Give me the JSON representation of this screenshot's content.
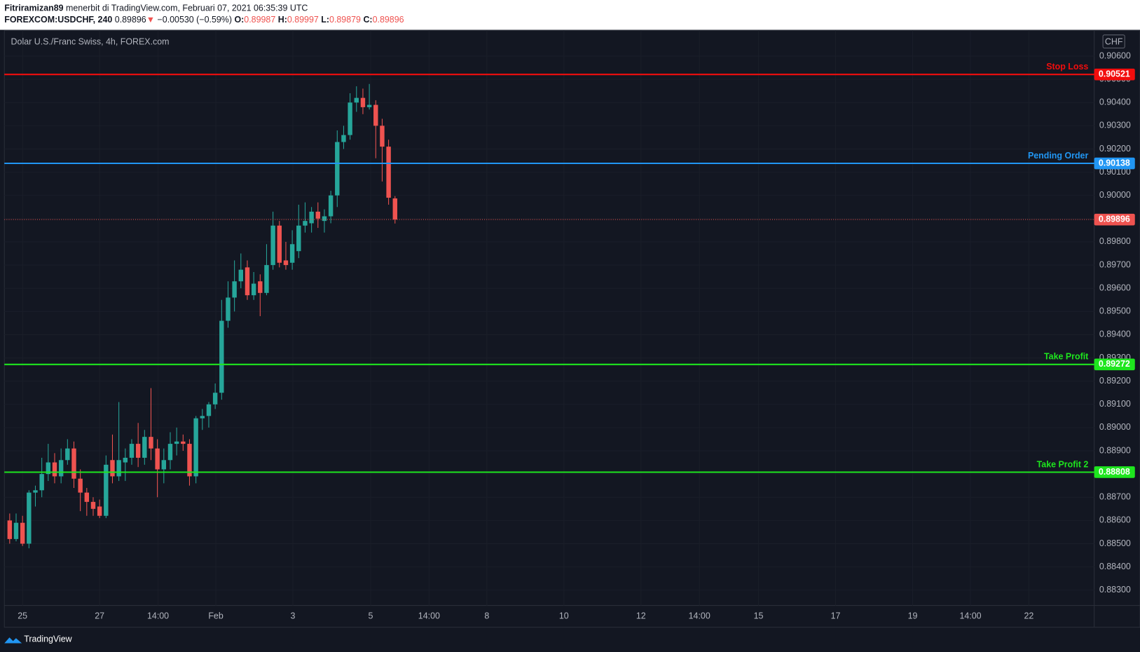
{
  "header": {
    "publisher": "Fitriramizan89",
    "published": "menerbit di TradingView.com, Februari 07, 2021 06:35:39 UTC",
    "symbol": "FOREXCOM:USDCHF, 240",
    "change": "−0.00530 (−0.59%)",
    "ohlc_labels": [
      "O:",
      "H:",
      "L:",
      "C:"
    ]
  },
  "footer": {
    "brand": "TradingView"
  },
  "chart_data": {
    "type": "candlestick",
    "title": "Dolar U.S./Franc Swiss, 4h, FOREX.com",
    "currency": "CHF",
    "up_color": "#26a69a",
    "down_color": "#ef5350",
    "x": [
      -2,
      -1,
      0,
      1,
      2,
      3,
      4,
      5,
      6,
      7,
      8,
      9,
      10,
      11,
      12,
      13,
      14,
      15,
      16,
      17,
      18,
      19,
      20,
      21,
      22,
      23,
      24,
      25,
      26,
      27,
      28,
      29,
      30,
      31,
      32,
      33,
      34,
      35,
      36,
      37,
      38,
      39,
      40,
      41,
      42,
      43,
      44,
      45,
      46,
      47,
      48,
      49,
      50,
      51,
      52,
      53,
      54,
      55,
      56,
      57,
      58
    ],
    "open": [
      0.886,
      0.8852,
      0.8859,
      0.885,
      0.8872,
      0.8873,
      0.888,
      0.8885,
      0.8879,
      0.8886,
      0.8891,
      0.8878,
      0.8872,
      0.8868,
      0.8866,
      0.8862,
      0.8886,
      0.8879,
      0.8885,
      0.8887,
      0.8893,
      0.8887,
      0.8896,
      0.8891,
      0.8882,
      0.8886,
      0.8893,
      0.8894,
      0.8893,
      0.8879,
      0.8904,
      0.8905,
      0.891,
      0.8915,
      0.8946,
      0.8956,
      0.8963,
      0.8969,
      0.8957,
      0.8963,
      0.8958,
      0.897,
      0.8987,
      0.8972,
      0.8971,
      0.8976,
      0.8987,
      0.8988,
      0.8993,
      0.8989,
      0.8991,
      0.9,
      0.9023,
      0.9026,
      0.904,
      0.9042,
      0.9038,
      0.9039,
      0.903,
      0.9021,
      0.89987
    ],
    "high": [
      0.8863,
      0.8863,
      0.8862,
      0.8873,
      0.8875,
      0.8887,
      0.8893,
      0.8889,
      0.8891,
      0.8895,
      0.8894,
      0.8882,
      0.8874,
      0.887,
      0.8869,
      0.8888,
      0.8897,
      0.8911,
      0.8891,
      0.8895,
      0.8902,
      0.8899,
      0.8917,
      0.8895,
      0.8891,
      0.8898,
      0.89,
      0.8897,
      0.8895,
      0.8905,
      0.8908,
      0.8911,
      0.8919,
      0.8955,
      0.8963,
      0.8972,
      0.8975,
      0.8972,
      0.8967,
      0.8966,
      0.8979,
      0.8993,
      0.8989,
      0.898,
      0.8985,
      0.8996,
      0.8997,
      0.8995,
      0.8997,
      0.8994,
      0.9002,
      0.9028,
      0.903,
      0.9044,
      0.9047,
      0.9046,
      0.9048,
      0.9041,
      0.9033,
      0.9024,
      0.89997
    ],
    "low": [
      0.885,
      0.8851,
      0.8849,
      0.8848,
      0.8866,
      0.887,
      0.8877,
      0.8876,
      0.8876,
      0.8884,
      0.8874,
      0.8864,
      0.8862,
      0.8862,
      0.8861,
      0.8861,
      0.8876,
      0.8877,
      0.8877,
      0.8884,
      0.8883,
      0.8884,
      0.8886,
      0.887,
      0.8876,
      0.8882,
      0.8888,
      0.889,
      0.8875,
      0.8876,
      0.8899,
      0.89,
      0.8908,
      0.8912,
      0.8943,
      0.895,
      0.896,
      0.8955,
      0.8955,
      0.8948,
      0.8957,
      0.8968,
      0.8969,
      0.8968,
      0.8968,
      0.8973,
      0.8984,
      0.8984,
      0.8986,
      0.8984,
      0.8988,
      0.8995,
      0.902,
      0.9024,
      0.9036,
      0.9035,
      0.9037,
      0.9016,
      0.9006,
      0.8996,
      0.89879
    ],
    "close": [
      0.8852,
      0.8859,
      0.885,
      0.8872,
      0.8873,
      0.888,
      0.8885,
      0.8879,
      0.8886,
      0.8891,
      0.8878,
      0.8872,
      0.8868,
      0.8865,
      0.8862,
      0.8884,
      0.8879,
      0.8886,
      0.8887,
      0.8893,
      0.8887,
      0.8896,
      0.8891,
      0.8882,
      0.8886,
      0.8893,
      0.8894,
      0.8893,
      0.8879,
      0.8904,
      0.8905,
      0.891,
      0.8915,
      0.8946,
      0.8956,
      0.8963,
      0.8968,
      0.8957,
      0.8962,
      0.8958,
      0.897,
      0.8987,
      0.8971,
      0.897,
      0.8979,
      0.8987,
      0.8989,
      0.8993,
      0.899,
      0.8991,
      0.9,
      0.9023,
      0.9026,
      0.904,
      0.9042,
      0.9038,
      0.9039,
      0.903,
      0.9021,
      0.8999,
      0.89896
    ],
    "xlim": [
      -2.83,
      166.87
    ],
    "ylim": [
      0.88234,
      0.9071
    ],
    "xticks": [
      {
        "value": 0,
        "label": "25"
      },
      {
        "value": 12,
        "label": "27"
      },
      {
        "value": 21.1,
        "label": "14:00"
      },
      {
        "value": 30.1,
        "label": "Feb"
      },
      {
        "value": 42.1,
        "label": "3"
      },
      {
        "value": 54.2,
        "label": "5"
      },
      {
        "value": 63.3,
        "label": "14:00"
      },
      {
        "value": 72.3,
        "label": "8"
      },
      {
        "value": 84.3,
        "label": "10"
      },
      {
        "value": 96.3,
        "label": "12"
      },
      {
        "value": 105.4,
        "label": "14:00"
      },
      {
        "value": 114.6,
        "label": "15"
      },
      {
        "value": 126.6,
        "label": "17"
      },
      {
        "value": 138.6,
        "label": "19"
      },
      {
        "value": 147.6,
        "label": "14:00"
      },
      {
        "value": 156.7,
        "label": "22"
      }
    ],
    "yticks": [
      {
        "value": 0.883,
        "label": "0.88300"
      },
      {
        "value": 0.884,
        "label": "0.88400"
      },
      {
        "value": 0.885,
        "label": "0.88500"
      },
      {
        "value": 0.886,
        "label": "0.88600"
      },
      {
        "value": 0.887,
        "label": "0.88700"
      },
      {
        "value": 0.888,
        "label": "0.88800"
      },
      {
        "value": 0.889,
        "label": "0.88900"
      },
      {
        "value": 0.89,
        "label": "0.89000"
      },
      {
        "value": 0.891,
        "label": "0.89100"
      },
      {
        "value": 0.892,
        "label": "0.89200"
      },
      {
        "value": 0.893,
        "label": "0.89300"
      },
      {
        "value": 0.894,
        "label": "0.89400"
      },
      {
        "value": 0.895,
        "label": "0.89500"
      },
      {
        "value": 0.896,
        "label": "0.89600"
      },
      {
        "value": 0.897,
        "label": "0.89700"
      },
      {
        "value": 0.898,
        "label": "0.89800"
      },
      {
        "value": 0.899,
        "label": "0.89900"
      },
      {
        "value": 0.9,
        "label": "0.90000"
      },
      {
        "value": 0.901,
        "label": "0.90100"
      },
      {
        "value": 0.902,
        "label": "0.90200"
      },
      {
        "value": 0.903,
        "label": "0.90300"
      },
      {
        "value": 0.904,
        "label": "0.90400"
      },
      {
        "value": 0.905,
        "label": "0.90500"
      },
      {
        "value": 0.906,
        "label": "0.90600"
      }
    ],
    "grid": true,
    "levels": [
      {
        "name": "Stop Loss",
        "value": 0.90521,
        "color": "#f20d0d"
      },
      {
        "name": "Pending Order",
        "value": 0.90138,
        "color": "#2196f3"
      },
      {
        "name": "Take Profit",
        "value": 0.89272,
        "color": "#1ee61e"
      },
      {
        "name": "Take Profit 2",
        "value": 0.88808,
        "color": "#1ee61e"
      }
    ]
  }
}
